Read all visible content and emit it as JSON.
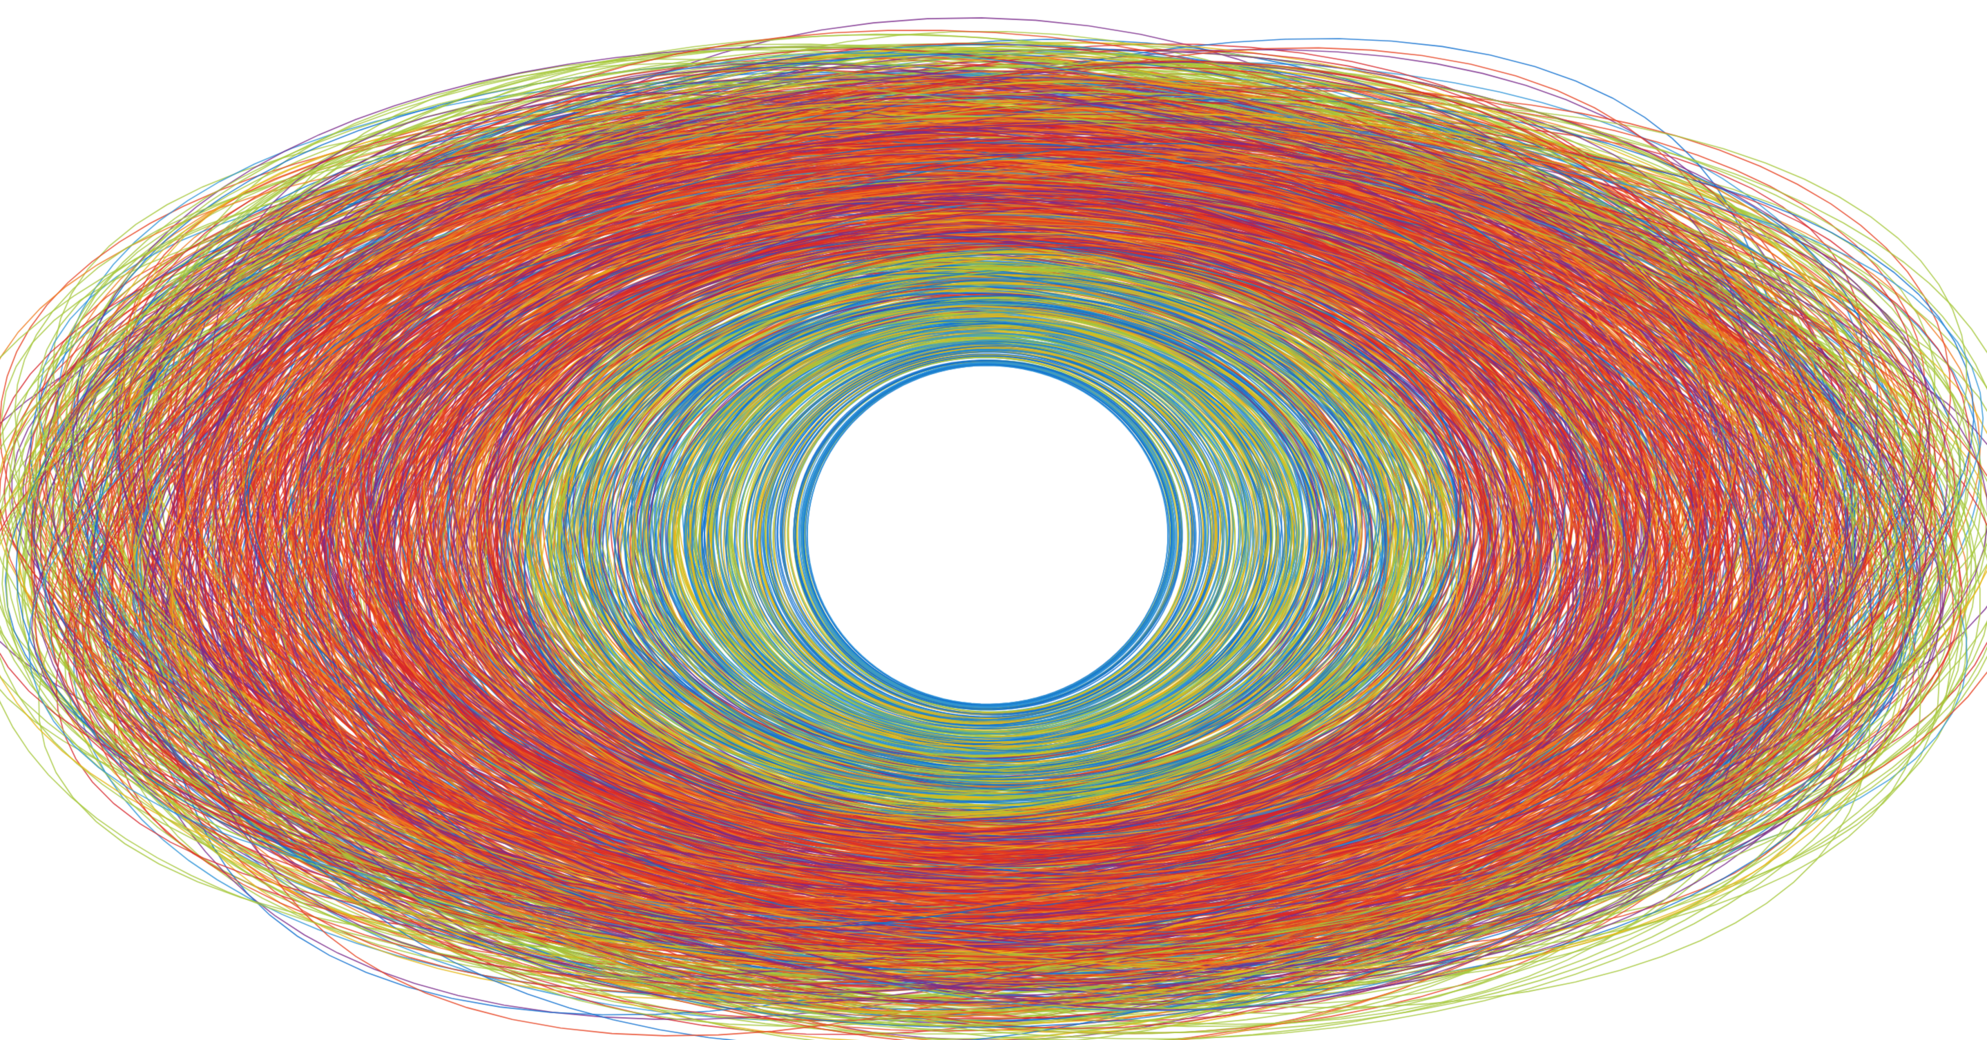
{
  "artwork": {
    "subject": "elliptical-ring-of-curves",
    "background_color": "#ffffff",
    "palette": [
      "#e8401e",
      "#d8262a",
      "#0d6fd0",
      "#2a93d8",
      "#e6b818",
      "#a6c83a",
      "#7a2a8c",
      "#f07a1c"
    ],
    "palette_names": [
      "orange-red",
      "crimson",
      "blue",
      "sky-blue",
      "golden-yellow",
      "lime-green",
      "purple",
      "orange"
    ],
    "inner_ring_tones": [
      "#2a93d8",
      "#e6b818",
      "#a6c83a",
      "#0d6fd0"
    ],
    "outer_ring_tones": [
      "#e8401e",
      "#d8262a",
      "#f07a1c",
      "#7a2a8c"
    ],
    "stroke_count": 1400
  }
}
